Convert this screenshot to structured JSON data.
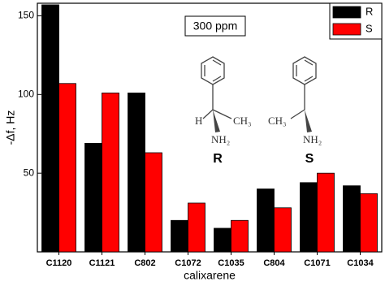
{
  "chart_data": {
    "type": "bar",
    "x_label": "calixarene",
    "y_label": "-Δf, Hz",
    "categories": [
      "C1120",
      "C1121",
      "C802",
      "C1072",
      "C1035",
      "C804",
      "C1071",
      "C1034"
    ],
    "series": [
      {
        "name": "R",
        "color": "#000000",
        "values": [
          157,
          69,
          101,
          20,
          15,
          40,
          44,
          42
        ]
      },
      {
        "name": "S",
        "color": "#ff0000",
        "values": [
          107,
          101,
          63,
          31,
          20,
          28,
          50,
          37
        ]
      }
    ],
    "ylim": [
      0,
      158
    ],
    "yticks": [
      50,
      100,
      150
    ],
    "legend": "upper right",
    "annotations": {
      "concentration": "300 ppm",
      "r_structure": {
        "h": "H",
        "methyl": "CH₃",
        "amine": "NH₂",
        "label": "R"
      },
      "s_structure": {
        "methyl": "CH₃",
        "amine": "NH₂",
        "label": "S"
      }
    }
  }
}
